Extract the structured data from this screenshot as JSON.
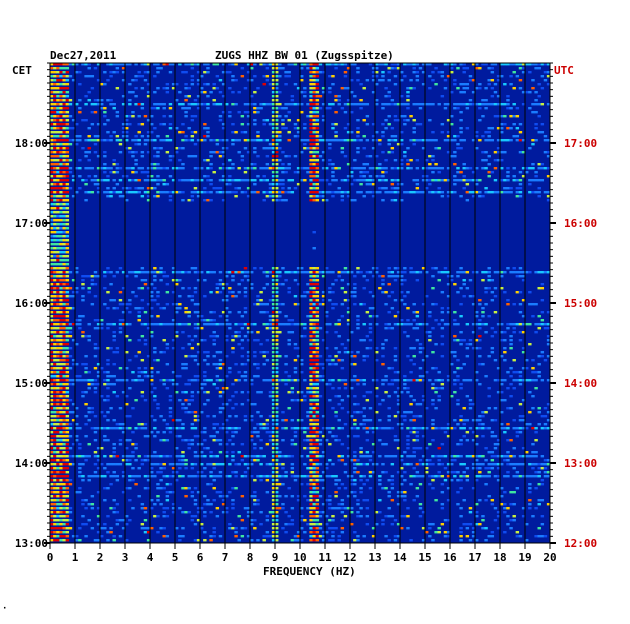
{
  "header": {
    "date": "Dec27,2011",
    "station": "ZUGS HHZ BW 01 (Zugsspitze)",
    "left_tz": "CET",
    "right_tz": "UTC"
  },
  "footer": {
    "mark": "·"
  },
  "colors": {
    "background": "#001b9e",
    "text": "#000000",
    "utc_text": "#cc0000"
  },
  "chart_data": {
    "type": "heatmap",
    "title": "ZUGS HHZ BW 01 (Zugsspitze)",
    "xlabel": "FREQUENCY (HZ)",
    "ylabel_left": "CET",
    "ylabel_right": "UTC",
    "xlim": [
      0,
      20
    ],
    "x_ticks": [
      "0",
      "1",
      "2",
      "3",
      "4",
      "5",
      "6",
      "7",
      "8",
      "9",
      "10",
      "11",
      "12",
      "13",
      "14",
      "15",
      "16",
      "17",
      "18",
      "19",
      "20"
    ],
    "y_range_cet": [
      "13:00",
      "19:00"
    ],
    "y_ticks_left": [
      "18:00",
      "17:00",
      "16:00",
      "15:00",
      "14:00",
      "13:00"
    ],
    "y_ticks_right": [
      "17:00",
      "16:00",
      "15:00",
      "14:00",
      "13:00",
      "12:00"
    ],
    "grid": true,
    "features": [
      {
        "name": "low-frequency band",
        "freq_hz": [
          0,
          0.8
        ],
        "intensity": "high"
      },
      {
        "name": "9 Hz line",
        "freq_hz": 9.0,
        "intensity": "medium"
      },
      {
        "name": "10.6 Hz line",
        "freq_hz": 10.6,
        "intensity": "high"
      },
      {
        "name": "quiet interval",
        "cet": [
          "16:30",
          "17:15"
        ],
        "intensity": "low"
      }
    ]
  }
}
